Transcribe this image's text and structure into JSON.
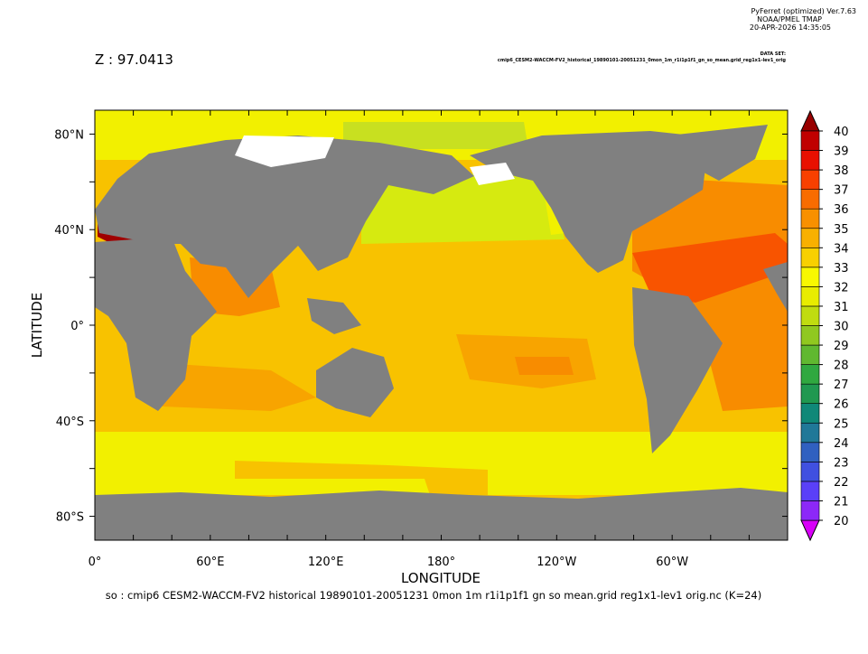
{
  "header": {
    "program": "PyFerret (optimized) Ver.7.63",
    "org": "NOAA/PMEL TMAP",
    "timestamp": "20-APR-2026 14:35:05",
    "dataset_label": "DATA SET:",
    "dataset": "cmip6_CESM2-WACCM-FV2_historical_19890101-20051231_0mon_1m_r1i1p1f1_gn_so_mean.grid_reg1x1-lev1_orig"
  },
  "z_label": "Z : 97.0413",
  "map": {
    "x_axis_title": "LONGITUDE",
    "y_axis_title": "LATITUDE",
    "x_ticks": [
      "0°",
      "60°E",
      "120°E",
      "180°",
      "120°W",
      "60°W"
    ],
    "y_ticks": [
      "80°N",
      "40°N",
      "0°",
      "40°S",
      "80°S"
    ]
  },
  "colorbar": {
    "levels": [
      20,
      21,
      22,
      23,
      24,
      25,
      26,
      27,
      28,
      29,
      30,
      31,
      32,
      33,
      34,
      35,
      36,
      37,
      38,
      39,
      40
    ]
  },
  "caption": "so : cmip6 CESM2-WACCM-FV2 historical 19890101-20051231 0mon 1m r1i1p1f1 gn so mean.grid reg1x1-lev1 orig.nc (K=24)"
}
